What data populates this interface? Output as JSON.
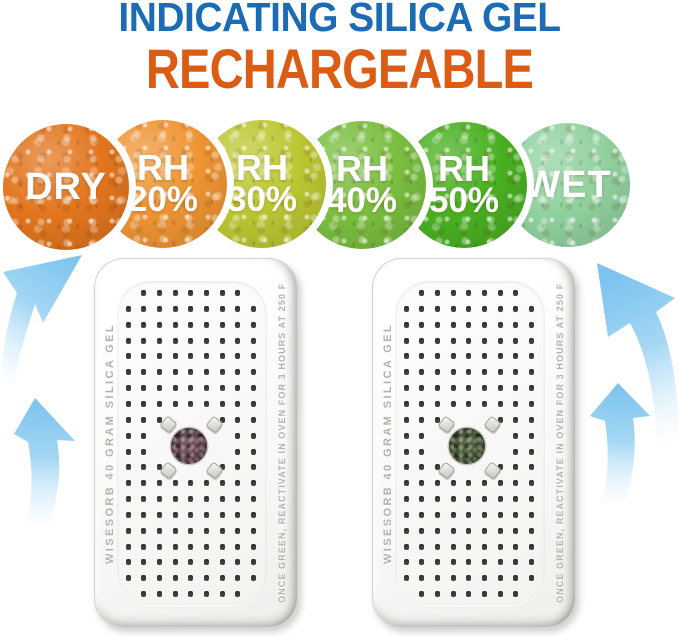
{
  "title": {
    "line1": "INDICATING SILICA GEL",
    "line2": "RECHARGEABLE",
    "line1_color": "#1b6cb4",
    "line2_color": "#dd5c14"
  },
  "humidity_scale": {
    "description": "color scale of indicating silica gel beads from dry to wet",
    "circles": [
      {
        "line1": "DRY",
        "line2": "",
        "state": "dry",
        "color": "#e2761f"
      },
      {
        "line1": "RH",
        "line2": "20%",
        "state": "rh-20",
        "color": "#ef9534"
      },
      {
        "line1": "RH",
        "line2": "30%",
        "state": "rh-30",
        "color": "#bdc833"
      },
      {
        "line1": "RH",
        "line2": "40%",
        "state": "rh-40",
        "color": "#7abf40"
      },
      {
        "line1": "RH",
        "line2": "50%",
        "state": "rh-50",
        "color": "#49b122"
      },
      {
        "line1": "WET",
        "line2": "",
        "state": "wet",
        "color": "#92d2a0"
      }
    ]
  },
  "containers": [
    {
      "left_text": "WISESORB 40 GRAM SILICA GEL",
      "right_text": "ONCE GREEN, REACTIVATE IN OVEN FOR 3 HOURS AT 250 F",
      "window_color": "#6b4550",
      "window_state": "orange-dry-indicator"
    },
    {
      "left_text": "WISESORB 40 GRAM SILICA GEL",
      "right_text": "ONCE GREEN, REACTIVATE IN OVEN FOR 3 HOURS AT 250 F",
      "window_color": "#45592f",
      "window_state": "green-saturated-indicator"
    }
  ],
  "icons": {
    "airflow_arrow_color": "#85c8ef"
  }
}
